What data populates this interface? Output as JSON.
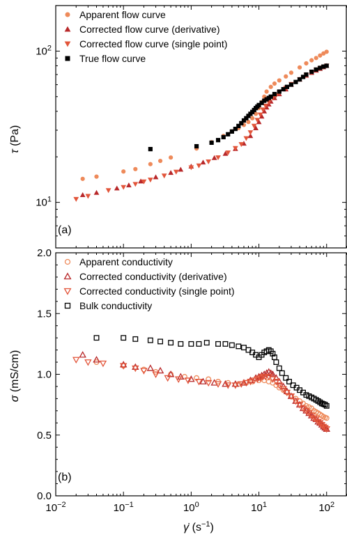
{
  "colors": {
    "apparent": "#ee8a5a",
    "derivative": "#b8282a",
    "single_point": "#e2553a",
    "true_bulk": "#000000"
  },
  "chart_data": [
    {
      "type": "scatter",
      "panel_label": "(a)",
      "ylabel_symbol": "τ",
      "ylabel_unit": "(Pa)",
      "xscale": "log",
      "yscale": "log",
      "xlim": [
        0.01,
        200
      ],
      "ylim": [
        5,
        200
      ],
      "legend_position": "top-left",
      "yticks": [
        {
          "v": 10,
          "base": "10",
          "exp": "1"
        },
        {
          "v": 100,
          "base": "10",
          "exp": "2"
        }
      ],
      "series": [
        {
          "name": "Apparent flow curve",
          "marker": "circle-filled",
          "color": "#ee8a5a",
          "x": [
            0.025,
            0.04,
            0.1,
            0.15,
            0.25,
            0.35,
            0.5,
            1.2,
            2.0,
            3.0,
            4.0,
            5.0,
            6.0,
            7.0,
            8.0,
            9.0,
            10.0,
            11.0,
            12.0,
            13.0,
            15.0,
            17.0,
            20.0,
            25.0,
            30.0,
            40.0,
            50.0,
            60.0,
            70.0,
            80.0,
            90.0,
            100.0
          ],
          "y": [
            14.3,
            14.8,
            16.0,
            16.6,
            17.9,
            18.8,
            19.8,
            22.7,
            25.0,
            27.5,
            29.5,
            31.0,
            32.5,
            34.0,
            36.0,
            38.5,
            42.0,
            46.0,
            50.0,
            54.0,
            58.0,
            61.0,
            64.0,
            68.0,
            72.0,
            78.0,
            83.0,
            87.0,
            90.0,
            93.5,
            96.5,
            99.0
          ]
        },
        {
          "name": "Corrected flow curve (derivative)",
          "marker": "triangle-up-filled",
          "color": "#b8282a",
          "x": [
            0.025,
            0.04,
            0.08,
            0.12,
            0.18,
            0.3,
            0.5,
            0.7,
            1.0,
            1.5,
            2.2,
            3.2,
            4.5,
            6.0,
            7.5,
            9.0,
            10.0,
            11.0,
            12.0,
            13.0,
            14.0,
            15.0,
            17.0,
            20.0,
            25.0,
            30.0,
            40.0,
            50.0,
            60.0,
            70.0,
            80.0,
            90.0,
            100.0
          ],
          "y": [
            11.2,
            11.6,
            12.4,
            13.0,
            13.8,
            14.7,
            15.7,
            16.5,
            17.3,
            18.4,
            19.7,
            21.0,
            22.6,
            24.5,
            27.5,
            31.0,
            34.0,
            37.0,
            40.0,
            42.5,
            44.5,
            46.5,
            49.0,
            52.0,
            56.0,
            60.0,
            65.0,
            69.0,
            72.0,
            74.5,
            76.5,
            78.5,
            80.0
          ]
        },
        {
          "name": "Corrected flow curve (single point)",
          "marker": "triangle-down-filled",
          "color": "#e2553a",
          "x": [
            0.02,
            0.03,
            0.06,
            0.1,
            0.15,
            0.2,
            0.25,
            0.4,
            0.6,
            1.0,
            1.3,
            1.8,
            2.5,
            3.5,
            4.5,
            5.5,
            6.5,
            7.5,
            8.5,
            9.5,
            10.5,
            11.5,
            12.5,
            14.0,
            16.0,
            18.0,
            20.0,
            25.0,
            30.0,
            40.0,
            50.0,
            60.0,
            70.0,
            80.0,
            90.0,
            100.0
          ],
          "y": [
            10.5,
            11.0,
            12.0,
            12.6,
            13.2,
            13.7,
            14.1,
            15.0,
            15.9,
            17.0,
            17.5,
            18.6,
            19.8,
            21.3,
            22.8,
            24.2,
            26.5,
            29.0,
            32.0,
            35.0,
            38.0,
            41.0,
            43.5,
            46.0,
            49.0,
            51.0,
            53.0,
            57.0,
            60.5,
            65.0,
            69.5,
            72.5,
            75.0,
            77.0,
            78.5,
            80.0
          ]
        },
        {
          "name": "True flow curve",
          "marker": "square-filled",
          "color": "#000000",
          "x": [
            0.25,
            1.2,
            2.0,
            2.5,
            3.0,
            3.5,
            4.0,
            4.5,
            5.0,
            5.5,
            6.0,
            6.5,
            7.0,
            7.5,
            8.0,
            8.5,
            9.0,
            9.5,
            10.0,
            11.0,
            12.0,
            13.0,
            14.0,
            15.0,
            17.0,
            20.0,
            23.0,
            26.0,
            30.0,
            35.0,
            40.0,
            45.0,
            50.0,
            60.0,
            70.0,
            80.0,
            90.0,
            100.0
          ],
          "y": [
            22.5,
            23.5,
            24.8,
            25.8,
            27.0,
            28.2,
            29.4,
            30.6,
            32.0,
            33.4,
            34.8,
            36.0,
            37.3,
            38.5,
            39.6,
            40.8,
            42.0,
            43.0,
            44.0,
            45.5,
            47.0,
            48.0,
            49.0,
            50.0,
            52.0,
            54.0,
            56.0,
            58.0,
            60.0,
            62.5,
            65.0,
            67.5,
            70.0,
            73.0,
            75.5,
            77.5,
            79.0,
            80.0
          ]
        }
      ]
    },
    {
      "type": "scatter",
      "panel_label": "(b)",
      "ylabel_symbol": "σ",
      "ylabel_unit": "(mS/cm)",
      "xlabel_symbol": "γ̇",
      "xlabel_unit_prefix": "(s",
      "xlabel_unit_exp": "−1",
      "xlabel_unit_suffix": ")",
      "xscale": "log",
      "yscale": "linear",
      "xlim": [
        0.01,
        200
      ],
      "ylim": [
        0.0,
        2.0
      ],
      "legend_position": "top-left",
      "yticks": [
        {
          "v": 0.0,
          "label": "0.0"
        },
        {
          "v": 0.5,
          "label": "0.5"
        },
        {
          "v": 1.0,
          "label": "1.0"
        },
        {
          "v": 1.5,
          "label": "1.5"
        },
        {
          "v": 2.0,
          "label": "2.0"
        }
      ],
      "xticks": [
        {
          "v": 0.01,
          "base": "10",
          "exp": "−2"
        },
        {
          "v": 0.1,
          "base": "10",
          "exp": "−1"
        },
        {
          "v": 1,
          "base": "10",
          "exp": "0"
        },
        {
          "v": 10,
          "base": "10",
          "exp": "1"
        },
        {
          "v": 100,
          "base": "10",
          "exp": "2"
        }
      ],
      "series": [
        {
          "name": "Apparent conductivity",
          "marker": "circle-open",
          "color": "#ee8a5a",
          "x": [
            0.04,
            0.1,
            0.2,
            0.3,
            0.5,
            0.8,
            1.2,
            1.8,
            2.5,
            3.5,
            5.0,
            6.5,
            8.0,
            10.0,
            12.0,
            14.0,
            16.0,
            18.0,
            20.0,
            23.0,
            26.0,
            30.0,
            35.0,
            40.0,
            45.0,
            50.0,
            55.0,
            60.0,
            65.0,
            70.0,
            75.0,
            80.0,
            85.0,
            90.0,
            95.0,
            100.0
          ],
          "y": [
            1.1,
            1.07,
            1.04,
            1.02,
            1.0,
            0.98,
            0.97,
            0.96,
            0.94,
            0.93,
            0.92,
            0.93,
            0.94,
            0.95,
            0.95,
            0.94,
            0.93,
            0.91,
            0.89,
            0.87,
            0.85,
            0.82,
            0.8,
            0.78,
            0.76,
            0.74,
            0.73,
            0.72,
            0.7,
            0.69,
            0.68,
            0.67,
            0.66,
            0.65,
            0.645,
            0.64
          ]
        },
        {
          "name": "Corrected conductivity (derivative)",
          "marker": "triangle-up-open",
          "color": "#b8282a",
          "x": [
            0.025,
            0.04,
            0.1,
            0.15,
            0.25,
            0.35,
            0.5,
            0.7,
            1.0,
            1.5,
            2.2,
            3.2,
            4.5,
            6.0,
            7.5,
            9.0,
            10.0,
            11.0,
            12.0,
            13.0,
            14.0,
            15.0,
            16.0,
            18.0,
            20.0,
            23.0,
            26.0,
            30.0,
            35.0,
            40.0,
            45.0,
            50.0,
            55.0,
            60.0,
            65.0,
            70.0,
            75.0,
            80.0,
            85.0,
            90.0,
            95.0,
            100.0
          ],
          "y": [
            1.16,
            1.12,
            1.08,
            1.06,
            1.05,
            1.03,
            1.0,
            0.98,
            0.96,
            0.94,
            0.93,
            0.92,
            0.92,
            0.93,
            0.95,
            0.97,
            0.98,
            0.99,
            1.0,
            1.01,
            1.02,
            1.01,
            1.0,
            0.97,
            0.94,
            0.9,
            0.86,
            0.82,
            0.78,
            0.75,
            0.72,
            0.7,
            0.68,
            0.66,
            0.64,
            0.63,
            0.61,
            0.6,
            0.585,
            0.57,
            0.56,
            0.55
          ]
        },
        {
          "name": "Corrected conductivity (single point)",
          "marker": "triangle-down-open",
          "color": "#e2553a",
          "x": [
            0.02,
            0.03,
            0.05,
            0.1,
            0.15,
            0.2,
            0.3,
            0.45,
            0.65,
            0.9,
            1.3,
            1.8,
            2.5,
            3.5,
            4.5,
            5.5,
            6.5,
            7.5,
            8.5,
            9.5,
            10.5,
            11.5,
            12.5,
            14.0,
            16.0,
            18.0,
            20.0,
            23.0,
            26.0,
            30.0,
            35.0,
            40.0,
            45.0,
            50.0,
            55.0,
            60.0,
            65.0,
            70.0,
            75.0,
            80.0,
            85.0,
            90.0,
            95.0,
            100.0
          ],
          "y": [
            1.12,
            1.1,
            1.09,
            1.07,
            1.05,
            1.03,
            1.0,
            0.97,
            0.96,
            0.95,
            0.94,
            0.93,
            0.92,
            0.91,
            0.91,
            0.92,
            0.93,
            0.94,
            0.95,
            0.96,
            0.97,
            0.98,
            0.98,
            0.98,
            0.96,
            0.94,
            0.91,
            0.88,
            0.85,
            0.82,
            0.78,
            0.75,
            0.72,
            0.7,
            0.68,
            0.66,
            0.64,
            0.63,
            0.61,
            0.6,
            0.585,
            0.57,
            0.56,
            0.55
          ]
        },
        {
          "name": "Bulk conductivity",
          "marker": "square-open",
          "color": "#000000",
          "x": [
            0.04,
            0.1,
            0.15,
            0.25,
            0.35,
            0.5,
            0.7,
            1.0,
            1.3,
            1.7,
            2.5,
            3.2,
            4.0,
            5.0,
            6.0,
            7.0,
            8.0,
            9.0,
            10.0,
            11.0,
            12.0,
            13.0,
            14.0,
            15.0,
            16.0,
            17.0,
            18.0,
            20.0,
            22.0,
            25.0,
            28.0,
            32.0,
            36.0,
            40.0,
            45.0,
            50.0,
            55.0,
            60.0,
            65.0,
            70.0,
            75.0,
            80.0,
            85.0,
            90.0,
            95.0,
            100.0
          ],
          "y": [
            1.3,
            1.3,
            1.29,
            1.28,
            1.27,
            1.26,
            1.25,
            1.25,
            1.25,
            1.26,
            1.25,
            1.25,
            1.24,
            1.23,
            1.22,
            1.2,
            1.18,
            1.16,
            1.14,
            1.16,
            1.18,
            1.19,
            1.2,
            1.19,
            1.17,
            1.14,
            1.1,
            1.05,
            1.01,
            0.97,
            0.94,
            0.91,
            0.89,
            0.87,
            0.85,
            0.83,
            0.82,
            0.81,
            0.8,
            0.79,
            0.78,
            0.77,
            0.76,
            0.755,
            0.75,
            0.74
          ]
        }
      ]
    }
  ]
}
